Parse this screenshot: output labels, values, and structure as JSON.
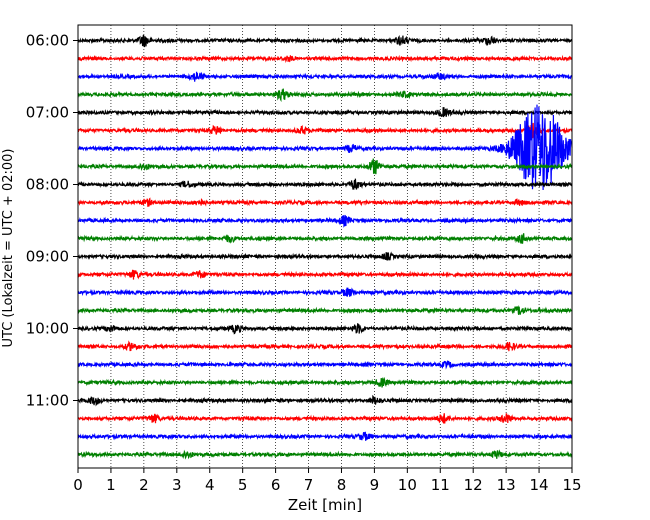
{
  "chart_data": {
    "type": "line",
    "title": "",
    "xlabel": "Zeit  [min]",
    "ylabel": "UTC (Lokalzeit = UTC + 02:00)",
    "xlim": [
      0,
      15
    ],
    "x_ticks": [
      "0",
      "1",
      "2",
      "3",
      "4",
      "5",
      "6",
      "7",
      "8",
      "9",
      "10",
      "11",
      "12",
      "13",
      "14",
      "15"
    ],
    "y_ticks": [
      "06:00",
      "07:00",
      "08:00",
      "09:00",
      "10:00",
      "11:00"
    ],
    "grid": "vertical dotted",
    "trace_interval_minutes": 15,
    "trace_colors": [
      "#000000",
      "#ff0000",
      "#0000ff",
      "#008000"
    ],
    "traces": [
      {
        "start": "06:00",
        "color": "#000000",
        "events": [
          [
            2.0,
            0.7
          ],
          [
            9.8,
            0.5
          ],
          [
            12.5,
            0.5
          ]
        ]
      },
      {
        "start": "06:15",
        "color": "#ff0000",
        "events": [
          [
            6.4,
            0.25
          ]
        ]
      },
      {
        "start": "06:30",
        "color": "#0000ff",
        "events": [
          [
            3.6,
            0.5
          ],
          [
            11.0,
            0.3
          ]
        ]
      },
      {
        "start": "06:45",
        "color": "#008000",
        "events": [
          [
            6.2,
            0.6
          ],
          [
            9.9,
            0.3
          ]
        ]
      },
      {
        "start": "07:00",
        "color": "#000000",
        "events": [
          [
            11.1,
            0.5
          ]
        ]
      },
      {
        "start": "07:15",
        "color": "#ff0000",
        "events": [
          [
            4.2,
            0.5
          ],
          [
            6.8,
            0.4
          ],
          [
            13.8,
            0.9
          ]
        ]
      },
      {
        "start": "07:30",
        "color": "#0000ff",
        "events": [
          [
            8.3,
            0.4
          ],
          [
            13.7,
            2.4
          ],
          [
            14.2,
            4.0
          ]
        ]
      },
      {
        "start": "07:45",
        "color": "#008000",
        "events": [
          [
            9.0,
            0.9
          ],
          [
            2.0,
            0.3
          ]
        ]
      },
      {
        "start": "08:00",
        "color": "#000000",
        "events": [
          [
            8.4,
            0.6
          ],
          [
            3.3,
            0.3
          ]
        ]
      },
      {
        "start": "08:15",
        "color": "#ff0000",
        "events": [
          [
            2.1,
            0.4
          ],
          [
            3.7,
            0.3
          ],
          [
            13.4,
            0.3
          ]
        ]
      },
      {
        "start": "08:30",
        "color": "#0000ff",
        "events": [
          [
            8.1,
            0.5
          ]
        ]
      },
      {
        "start": "08:45",
        "color": "#008000",
        "events": [
          [
            4.6,
            0.4
          ],
          [
            13.5,
            0.5
          ]
        ]
      },
      {
        "start": "09:00",
        "color": "#000000",
        "events": [
          [
            9.4,
            0.4
          ]
        ]
      },
      {
        "start": "09:15",
        "color": "#ff0000",
        "events": [
          [
            1.7,
            0.5
          ],
          [
            3.7,
            0.4
          ]
        ]
      },
      {
        "start": "09:30",
        "color": "#0000ff",
        "events": [
          [
            8.2,
            0.5
          ]
        ]
      },
      {
        "start": "09:45",
        "color": "#008000",
        "events": [
          [
            13.4,
            0.5
          ]
        ]
      },
      {
        "start": "10:00",
        "color": "#000000",
        "events": [
          [
            1.0,
            0.3
          ],
          [
            4.8,
            0.4
          ],
          [
            8.5,
            0.5
          ]
        ]
      },
      {
        "start": "10:15",
        "color": "#ff0000",
        "events": [
          [
            1.6,
            0.4
          ],
          [
            13.1,
            0.4
          ]
        ]
      },
      {
        "start": "10:30",
        "color": "#0000ff",
        "events": [
          [
            11.2,
            0.3
          ]
        ]
      },
      {
        "start": "10:45",
        "color": "#008000",
        "events": [
          [
            9.2,
            0.5
          ]
        ]
      },
      {
        "start": "11:00",
        "color": "#000000",
        "events": [
          [
            0.5,
            0.4
          ],
          [
            9.0,
            0.4
          ]
        ]
      },
      {
        "start": "11:15",
        "color": "#ff0000",
        "events": [
          [
            2.3,
            0.5
          ],
          [
            11.1,
            0.5
          ],
          [
            13.0,
            0.5
          ]
        ]
      },
      {
        "start": "11:30",
        "color": "#0000ff",
        "events": [
          [
            8.7,
            0.4
          ]
        ]
      },
      {
        "start": "11:45",
        "color": "#008000",
        "events": [
          [
            3.3,
            0.4
          ],
          [
            12.7,
            0.4
          ]
        ]
      }
    ]
  }
}
